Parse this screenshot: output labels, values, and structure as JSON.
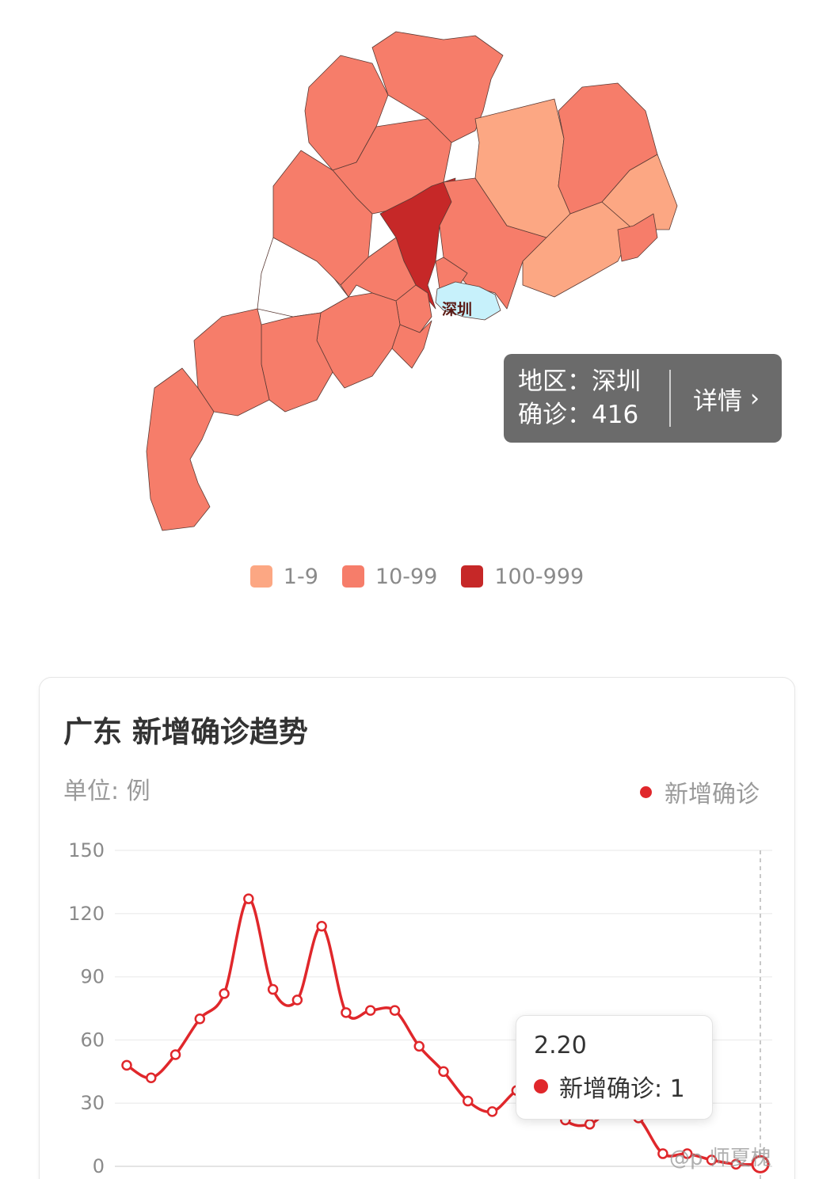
{
  "map": {
    "highlight_label": "深圳",
    "tooltip": {
      "region_label": "地区：",
      "region_value": "深圳",
      "confirmed_label": "确诊：",
      "confirmed_value": "416",
      "detail_label": "详情"
    },
    "colors": {
      "band_1_9": "#fca783",
      "band_10_99": "#f67d6a",
      "band_100_999": "#c62828",
      "selected": "#c7f1fb",
      "no_case": "#ffffff"
    },
    "legend": [
      {
        "label": "1-9",
        "color": "#fca783"
      },
      {
        "label": "10-99",
        "color": "#f67d6a"
      },
      {
        "label": "100-999",
        "color": "#c62828"
      }
    ]
  },
  "card": {
    "title": "广东 新增确诊趋势",
    "unit": "单位: 例",
    "series_name": "新增确诊"
  },
  "tooltip": {
    "date": "2.20",
    "series_label": "新增确诊: ",
    "value": "1"
  },
  "watermark": "@p 师夏槐",
  "chart_data": {
    "type": "line",
    "title": "广东 新增确诊趋势",
    "ylabel": "单位: 例",
    "ylim": [
      0,
      150
    ],
    "yticks": [
      "0",
      "30",
      "60",
      "90",
      "120",
      "150"
    ],
    "grid": true,
    "legend_position": "top-right",
    "series": [
      {
        "name": "新增确诊",
        "color": "#e0272b",
        "values": [
          48,
          42,
          53,
          70,
          82,
          127,
          84,
          79,
          114,
          73,
          74,
          74,
          57,
          45,
          31,
          26,
          36,
          40,
          22,
          20,
          28,
          23,
          6,
          6,
          3,
          1,
          1
        ]
      }
    ]
  }
}
